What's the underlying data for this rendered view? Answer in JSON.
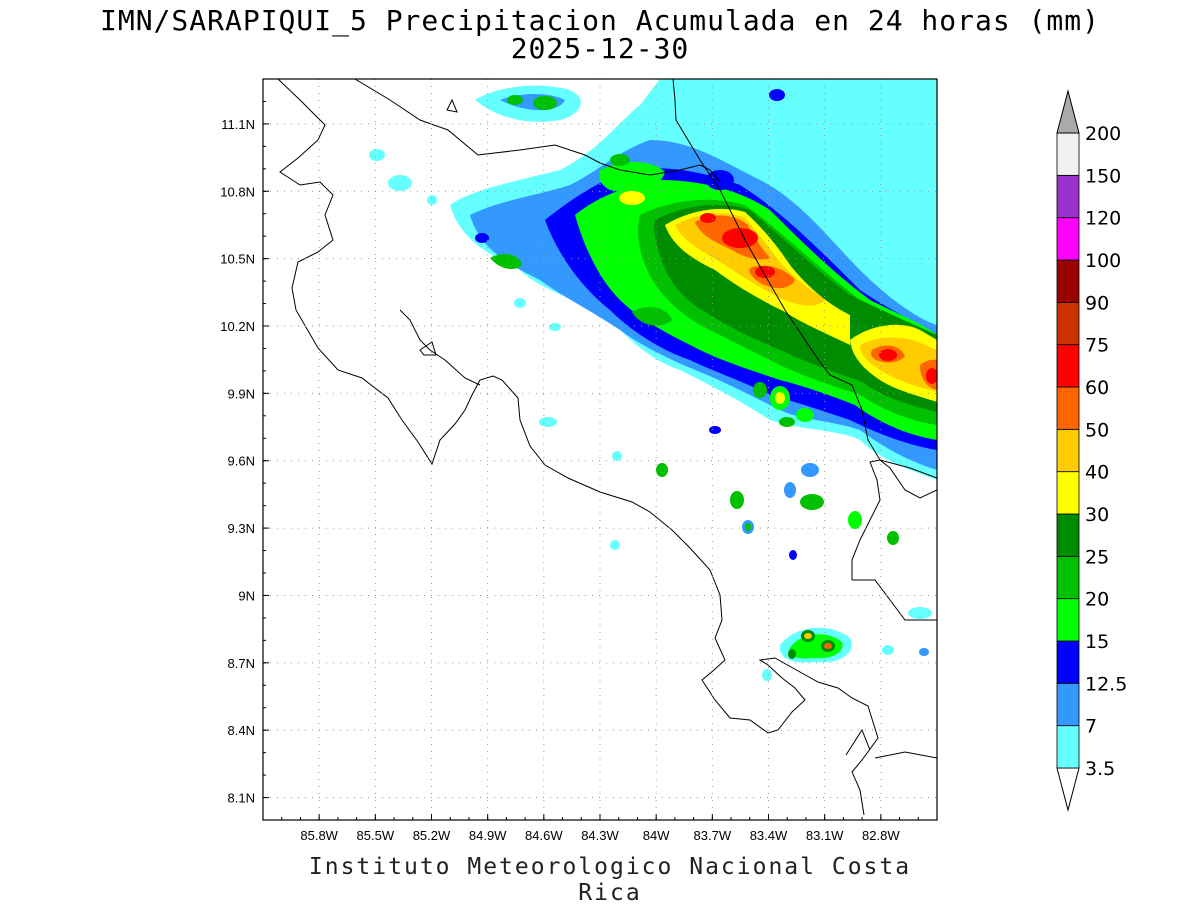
{
  "title_line1": "IMN/SARAPIQUI_5 Precipitacion Acumulada en 24 horas (mm)",
  "title_line2": "2025-12-30",
  "credit": "Instituto Meteorologico Nacional Costa Rica",
  "map": {
    "lon_range": [
      -86.1,
      -82.5
    ],
    "lat_range": [
      8.0,
      11.3
    ],
    "x_ticks": [
      {
        "value": -85.8,
        "label": "85.8W"
      },
      {
        "value": -85.5,
        "label": "85.5W"
      },
      {
        "value": -85.2,
        "label": "85.2W"
      },
      {
        "value": -84.9,
        "label": "84.9W"
      },
      {
        "value": -84.6,
        "label": "84.6W"
      },
      {
        "value": -84.3,
        "label": "84.3W"
      },
      {
        "value": -84.0,
        "label": "84W"
      },
      {
        "value": -83.7,
        "label": "83.7W"
      },
      {
        "value": -83.4,
        "label": "83.4W"
      },
      {
        "value": -83.1,
        "label": "83.1W"
      },
      {
        "value": -82.8,
        "label": "82.8W"
      }
    ],
    "y_ticks": [
      {
        "value": 11.1,
        "label": "11.1N"
      },
      {
        "value": 10.8,
        "label": "10.8N"
      },
      {
        "value": 10.5,
        "label": "10.5N"
      },
      {
        "value": 10.2,
        "label": "10.2N"
      },
      {
        "value": 9.9,
        "label": "9.9N"
      },
      {
        "value": 9.6,
        "label": "9.6N"
      },
      {
        "value": 9.3,
        "label": "9.3N"
      },
      {
        "value": 9.0,
        "label": "9N"
      },
      {
        "value": 8.7,
        "label": "8.7N"
      },
      {
        "value": 8.4,
        "label": "8.4N"
      },
      {
        "value": 8.1,
        "label": "8.1N"
      }
    ],
    "grid": "dotted"
  },
  "legend": {
    "labels": [
      "200",
      "150",
      "120",
      "100",
      "90",
      "75",
      "60",
      "50",
      "40",
      "30",
      "25",
      "20",
      "15",
      "12.5",
      "7",
      "3.5"
    ],
    "colors_bottom_to_top": [
      "#ffffff",
      "#66ffff",
      "#3399ff",
      "#0000ff",
      "#00ff00",
      "#00c000",
      "#008c00",
      "#ffff00",
      "#ffcc00",
      "#ff6600",
      "#ff0000",
      "#cc3300",
      "#990000",
      "#ff00ff",
      "#9933cc",
      "#f0f0f0",
      "#aaaaaa"
    ]
  },
  "colors": {
    "cyan": "#66ffff",
    "lightblue": "#3399ff",
    "blue": "#0000ff",
    "green": "#00ff00",
    "mid_green": "#00c000",
    "dark_green": "#008c00",
    "yellow": "#ffff00",
    "gold": "#ffcc00",
    "orange": "#ff6600",
    "red": "#ff0000"
  }
}
